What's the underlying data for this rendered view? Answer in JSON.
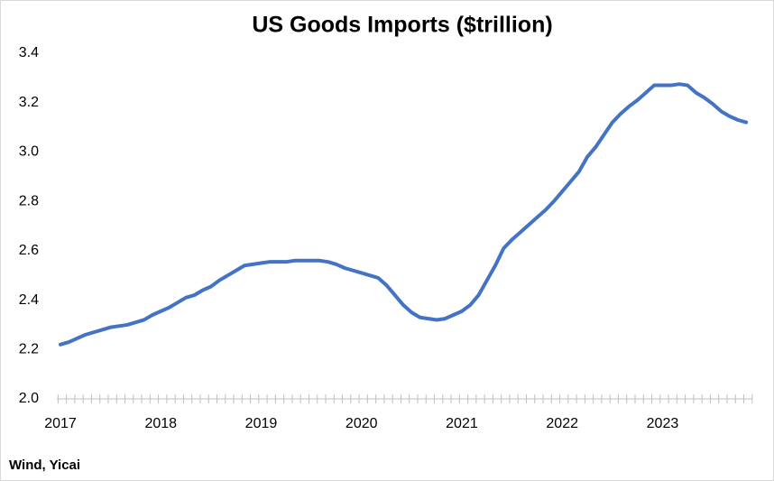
{
  "chart_data": {
    "type": "line",
    "title": "US Goods Imports ($trillion)",
    "source": "Wind, Yicai",
    "categories": [
      "2017",
      null,
      null,
      null,
      null,
      null,
      null,
      null,
      null,
      null,
      null,
      null,
      "2018",
      null,
      null,
      null,
      null,
      null,
      null,
      null,
      null,
      null,
      null,
      null,
      "2019",
      null,
      null,
      null,
      null,
      null,
      null,
      null,
      null,
      null,
      null,
      null,
      "2020",
      null,
      null,
      null,
      null,
      null,
      null,
      null,
      null,
      null,
      null,
      null,
      "2021",
      null,
      null,
      null,
      null,
      null,
      null,
      null,
      null,
      null,
      null,
      null,
      "2022",
      null,
      null,
      null,
      null,
      null,
      null,
      null,
      null,
      null,
      null,
      null,
      "2023",
      null,
      null,
      null,
      null,
      null,
      null,
      null,
      null,
      null,
      null
    ],
    "series": [
      {
        "color": "#4472c4",
        "values": [
          2.22,
          2.23,
          2.245,
          2.26,
          2.27,
          2.28,
          2.29,
          2.295,
          2.3,
          2.31,
          2.32,
          2.34,
          2.355,
          2.37,
          2.39,
          2.41,
          2.42,
          2.44,
          2.455,
          2.48,
          2.5,
          2.52,
          2.54,
          2.545,
          2.55,
          2.555,
          2.555,
          2.555,
          2.56,
          2.56,
          2.56,
          2.56,
          2.555,
          2.545,
          2.53,
          2.52,
          2.51,
          2.5,
          2.49,
          2.46,
          2.42,
          2.38,
          2.35,
          2.33,
          2.325,
          2.32,
          2.325,
          2.34,
          2.355,
          2.38,
          2.42,
          2.48,
          2.54,
          2.61,
          2.645,
          2.675,
          2.705,
          2.735,
          2.765,
          2.8,
          2.84,
          2.88,
          2.92,
          2.98,
          3.02,
          3.07,
          3.12,
          3.155,
          3.185,
          3.21,
          3.24,
          3.27,
          3.27,
          3.27,
          3.275,
          3.27,
          3.24,
          3.22,
          3.195,
          3.165,
          3.145,
          3.13,
          3.12
        ]
      }
    ],
    "ylim": [
      2.0,
      3.4
    ],
    "yticks": [
      {
        "value": 2.0,
        "label": "2.0"
      },
      2.2,
      2.4,
      2.6,
      2.8,
      {
        "value": 3.0,
        "label": "3.0"
      },
      3.2,
      3.4
    ]
  }
}
